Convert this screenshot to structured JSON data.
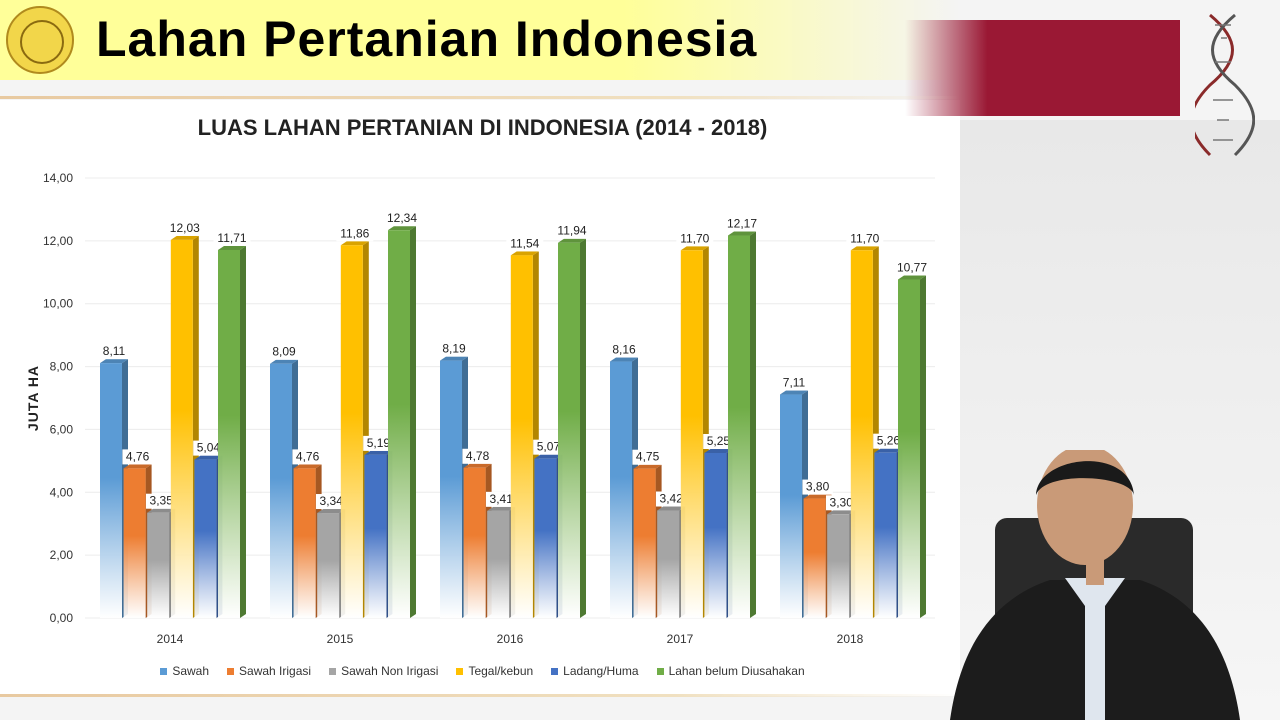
{
  "header": {
    "title": "Lahan Pertanian Indonesia"
  },
  "colors": {
    "header_bg": "#ffff99",
    "accent_red": "#9a1834"
  },
  "chart_data": {
    "type": "bar",
    "title": "LUAS LAHAN PERTANIAN DI INDONESIA (2014 - 2018)",
    "ylabel": "JUTA HA",
    "xlabel": "",
    "ylim": [
      0,
      14
    ],
    "yticks": [
      "0,00",
      "2,00",
      "4,00",
      "6,00",
      "8,00",
      "10,00",
      "12,00",
      "14,00"
    ],
    "categories": [
      "2014",
      "2015",
      "2016",
      "2017",
      "2018"
    ],
    "legend_position": "bottom",
    "series": [
      {
        "name": "Sawah",
        "color": "#5b9bd5",
        "values": [
          8.11,
          8.09,
          8.19,
          8.16,
          7.11
        ],
        "labels": [
          "8,11",
          "8,09",
          "8,19",
          "8,16",
          "7,11"
        ]
      },
      {
        "name": "Sawah Irigasi",
        "color": "#ed7d31",
        "values": [
          4.76,
          4.76,
          4.78,
          4.75,
          3.8
        ],
        "labels": [
          "4,76",
          "4,76",
          "4,78",
          "4,75",
          "3,80"
        ]
      },
      {
        "name": "Sawah Non Irigasi",
        "color": "#a5a5a5",
        "values": [
          3.35,
          3.34,
          3.41,
          3.42,
          3.3
        ],
        "labels": [
          "3,35",
          "3,34",
          "3,41",
          "3,42",
          "3,30"
        ]
      },
      {
        "name": "Tegal/kebun",
        "color": "#ffc000",
        "values": [
          12.03,
          11.86,
          11.54,
          11.7,
          11.7
        ],
        "labels": [
          "12,03",
          "11,86",
          "11,54",
          "11,70",
          "11,70"
        ]
      },
      {
        "name": "Ladang/Huma",
        "color": "#4472c4",
        "values": [
          5.04,
          5.19,
          5.07,
          5.25,
          5.26
        ],
        "labels": [
          "5,04",
          "5,19",
          "5,07",
          "5,25",
          "5,26"
        ]
      },
      {
        "name": "Lahan belum Diusahakan",
        "color": "#70ad47",
        "values": [
          11.71,
          12.34,
          11.94,
          12.17,
          10.77
        ],
        "labels": [
          "11,71",
          "12,34",
          "11,94",
          "12,17",
          "10,77"
        ]
      }
    ]
  }
}
